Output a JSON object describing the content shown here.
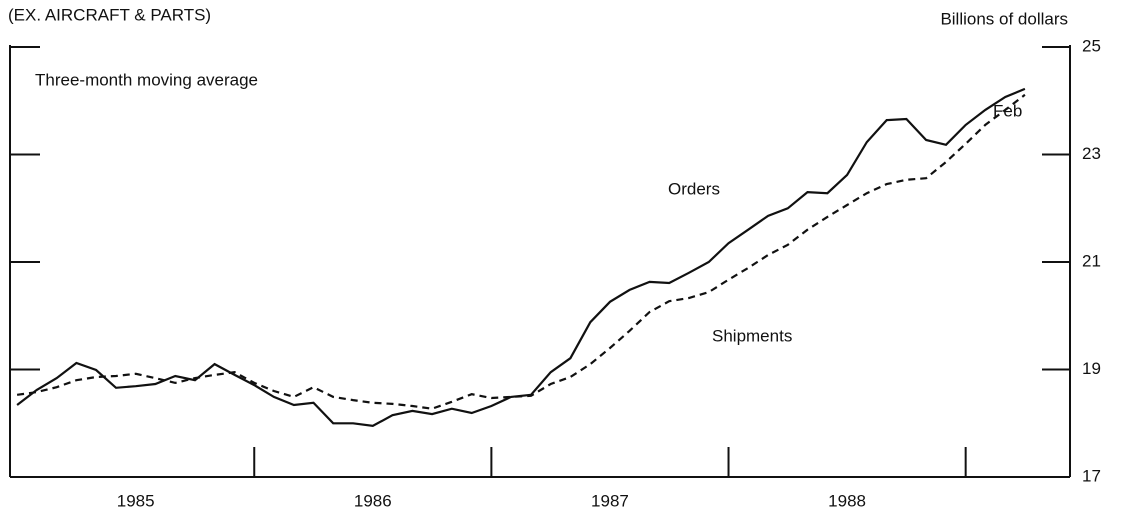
{
  "chart_data": {
    "type": "line",
    "subtitle": "(EX. AIRCRAFT & PARTS)",
    "y_axis_label": "Billions of dollars",
    "note": "Three-month moving average",
    "annotations": [
      "Orders",
      "Shipments",
      "Feb"
    ],
    "x": [
      1985,
      1985.083,
      1985.167,
      1985.25,
      1985.333,
      1985.417,
      1985.5,
      1985.583,
      1985.667,
      1985.75,
      1985.833,
      1985.917,
      1986,
      1986.083,
      1986.167,
      1986.25,
      1986.333,
      1986.417,
      1986.5,
      1986.583,
      1986.667,
      1986.75,
      1986.833,
      1986.917,
      1987,
      1987.083,
      1987.167,
      1987.25,
      1987.333,
      1987.417,
      1987.5,
      1987.583,
      1987.667,
      1987.75,
      1987.833,
      1987.917,
      1988,
      1988.083,
      1988.167,
      1988.25,
      1988.333,
      1988.417,
      1988.5,
      1988.583,
      1988.667,
      1988.75,
      1988.833,
      1988.917,
      1989,
      1989.083,
      1989.167,
      1989.25
    ],
    "series": [
      {
        "name": "Orders",
        "color": "#111111",
        "dash": false,
        "values": [
          18.34,
          18.62,
          18.84,
          19.12,
          18.99,
          18.66,
          18.69,
          18.73,
          18.88,
          18.8,
          19.1,
          18.9,
          18.71,
          18.49,
          18.34,
          18.38,
          18.0,
          18.0,
          17.95,
          18.15,
          18.23,
          18.17,
          18.27,
          18.19,
          18.32,
          18.49,
          18.53,
          18.95,
          19.21,
          19.88,
          20.26,
          20.48,
          20.63,
          20.61,
          20.8,
          21.0,
          21.35,
          21.6,
          21.86,
          22.0,
          22.3,
          22.28,
          22.62,
          23.23,
          23.64,
          23.66,
          23.27,
          23.18,
          23.55,
          23.83,
          24.07,
          24.22
        ]
      },
      {
        "name": "Shipments",
        "color": "#111111",
        "dash": true,
        "values": [
          18.53,
          18.58,
          18.67,
          18.8,
          18.86,
          18.88,
          18.92,
          18.84,
          18.75,
          18.84,
          18.9,
          18.95,
          18.75,
          18.6,
          18.49,
          18.67,
          18.49,
          18.43,
          18.38,
          18.36,
          18.32,
          18.27,
          18.4,
          18.54,
          18.47,
          18.49,
          18.51,
          18.73,
          18.86,
          19.1,
          19.4,
          19.72,
          20.07,
          20.27,
          20.33,
          20.44,
          20.67,
          20.89,
          21.13,
          21.32,
          21.6,
          21.84,
          22.06,
          22.28,
          22.45,
          22.53,
          22.56,
          22.86,
          23.2,
          23.55,
          23.83,
          24.11
        ]
      }
    ],
    "xlim": [
      1984.97,
      1989.44
    ],
    "xticks": [
      {
        "value": 1985.5,
        "label": "1985"
      },
      {
        "value": 1986.5,
        "label": "1986"
      },
      {
        "value": 1987.5,
        "label": "1987"
      },
      {
        "value": 1988.5,
        "label": "1988"
      }
    ],
    "ylim": [
      17,
      25
    ],
    "yticks": [
      17,
      19,
      21,
      23,
      25
    ],
    "grid": false
  }
}
